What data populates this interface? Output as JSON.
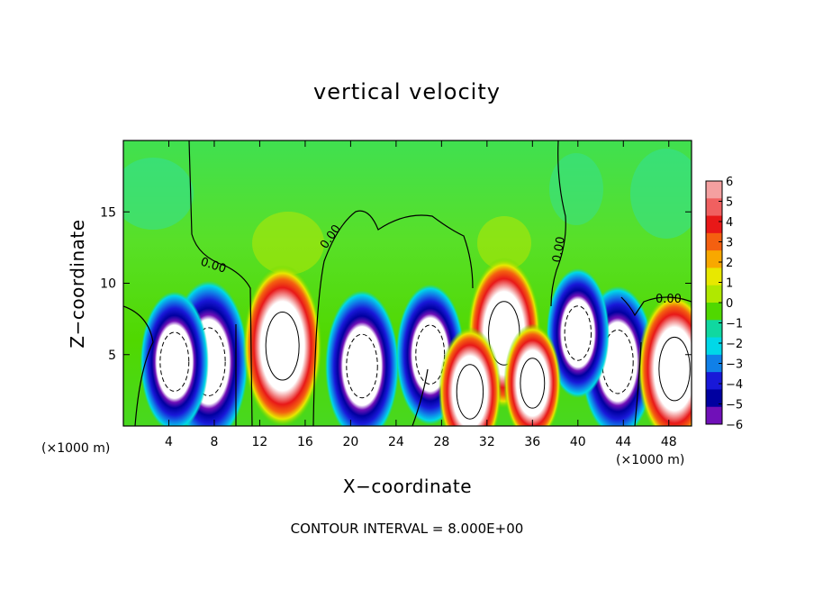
{
  "chart_data": {
    "type": "heatmap",
    "title": "vertical velocity",
    "xlabel": "X−coordinate",
    "ylabel": "Z−coordinate",
    "x_unit_left": "(×1000 m)",
    "x_unit_right": "(×1000 m)",
    "footer": "CONTOUR INTERVAL = 8.000E+00",
    "xlim": [
      0,
      50
    ],
    "ylim": [
      0,
      20
    ],
    "x_ticks": [
      4,
      8,
      12,
      16,
      20,
      24,
      28,
      32,
      36,
      40,
      44,
      48
    ],
    "y_ticks": [
      5,
      10,
      15
    ],
    "colorbar": {
      "labels": [
        "6",
        "5",
        "4",
        "3",
        "2",
        "1",
        "0",
        "−1",
        "−2",
        "−3",
        "−4",
        "−5",
        "−6"
      ],
      "colors": [
        "#f4a0a0",
        "#f06060",
        "#e81818",
        "#f46010",
        "#f8a800",
        "#e8e800",
        "#b0e800",
        "#50d800",
        "#10d8a0",
        "#00d8e8",
        "#1080e8",
        "#1818d8",
        "#0000a0",
        "#7010b8"
      ]
    },
    "contour_labels": [
      "0.00",
      "0.00",
      "0.00",
      "0.00"
    ],
    "updrafts": [
      {
        "x": 14,
        "z": 5.6,
        "w": 5.0
      },
      {
        "x": 33.5,
        "z": 6.5,
        "w": 4.5
      },
      {
        "x": 48.5,
        "z": 4.0,
        "w": 4.5
      },
      {
        "x": 30.5,
        "z": 2.4,
        "w": 3.5
      },
      {
        "x": 36,
        "z": 3.0,
        "w": 3.0
      }
    ],
    "downdrafts": [
      {
        "x": 7.5,
        "z": 4.5,
        "w": -5.0
      },
      {
        "x": 21,
        "z": 4.2,
        "w": -4.5
      },
      {
        "x": 4.5,
        "z": 4.5,
        "w": -4.0
      },
      {
        "x": 27,
        "z": 5.0,
        "w": -4.0
      },
      {
        "x": 43.5,
        "z": 4.5,
        "w": -4.5
      },
      {
        "x": 40,
        "z": 6.5,
        "w": -3.5
      }
    ]
  }
}
